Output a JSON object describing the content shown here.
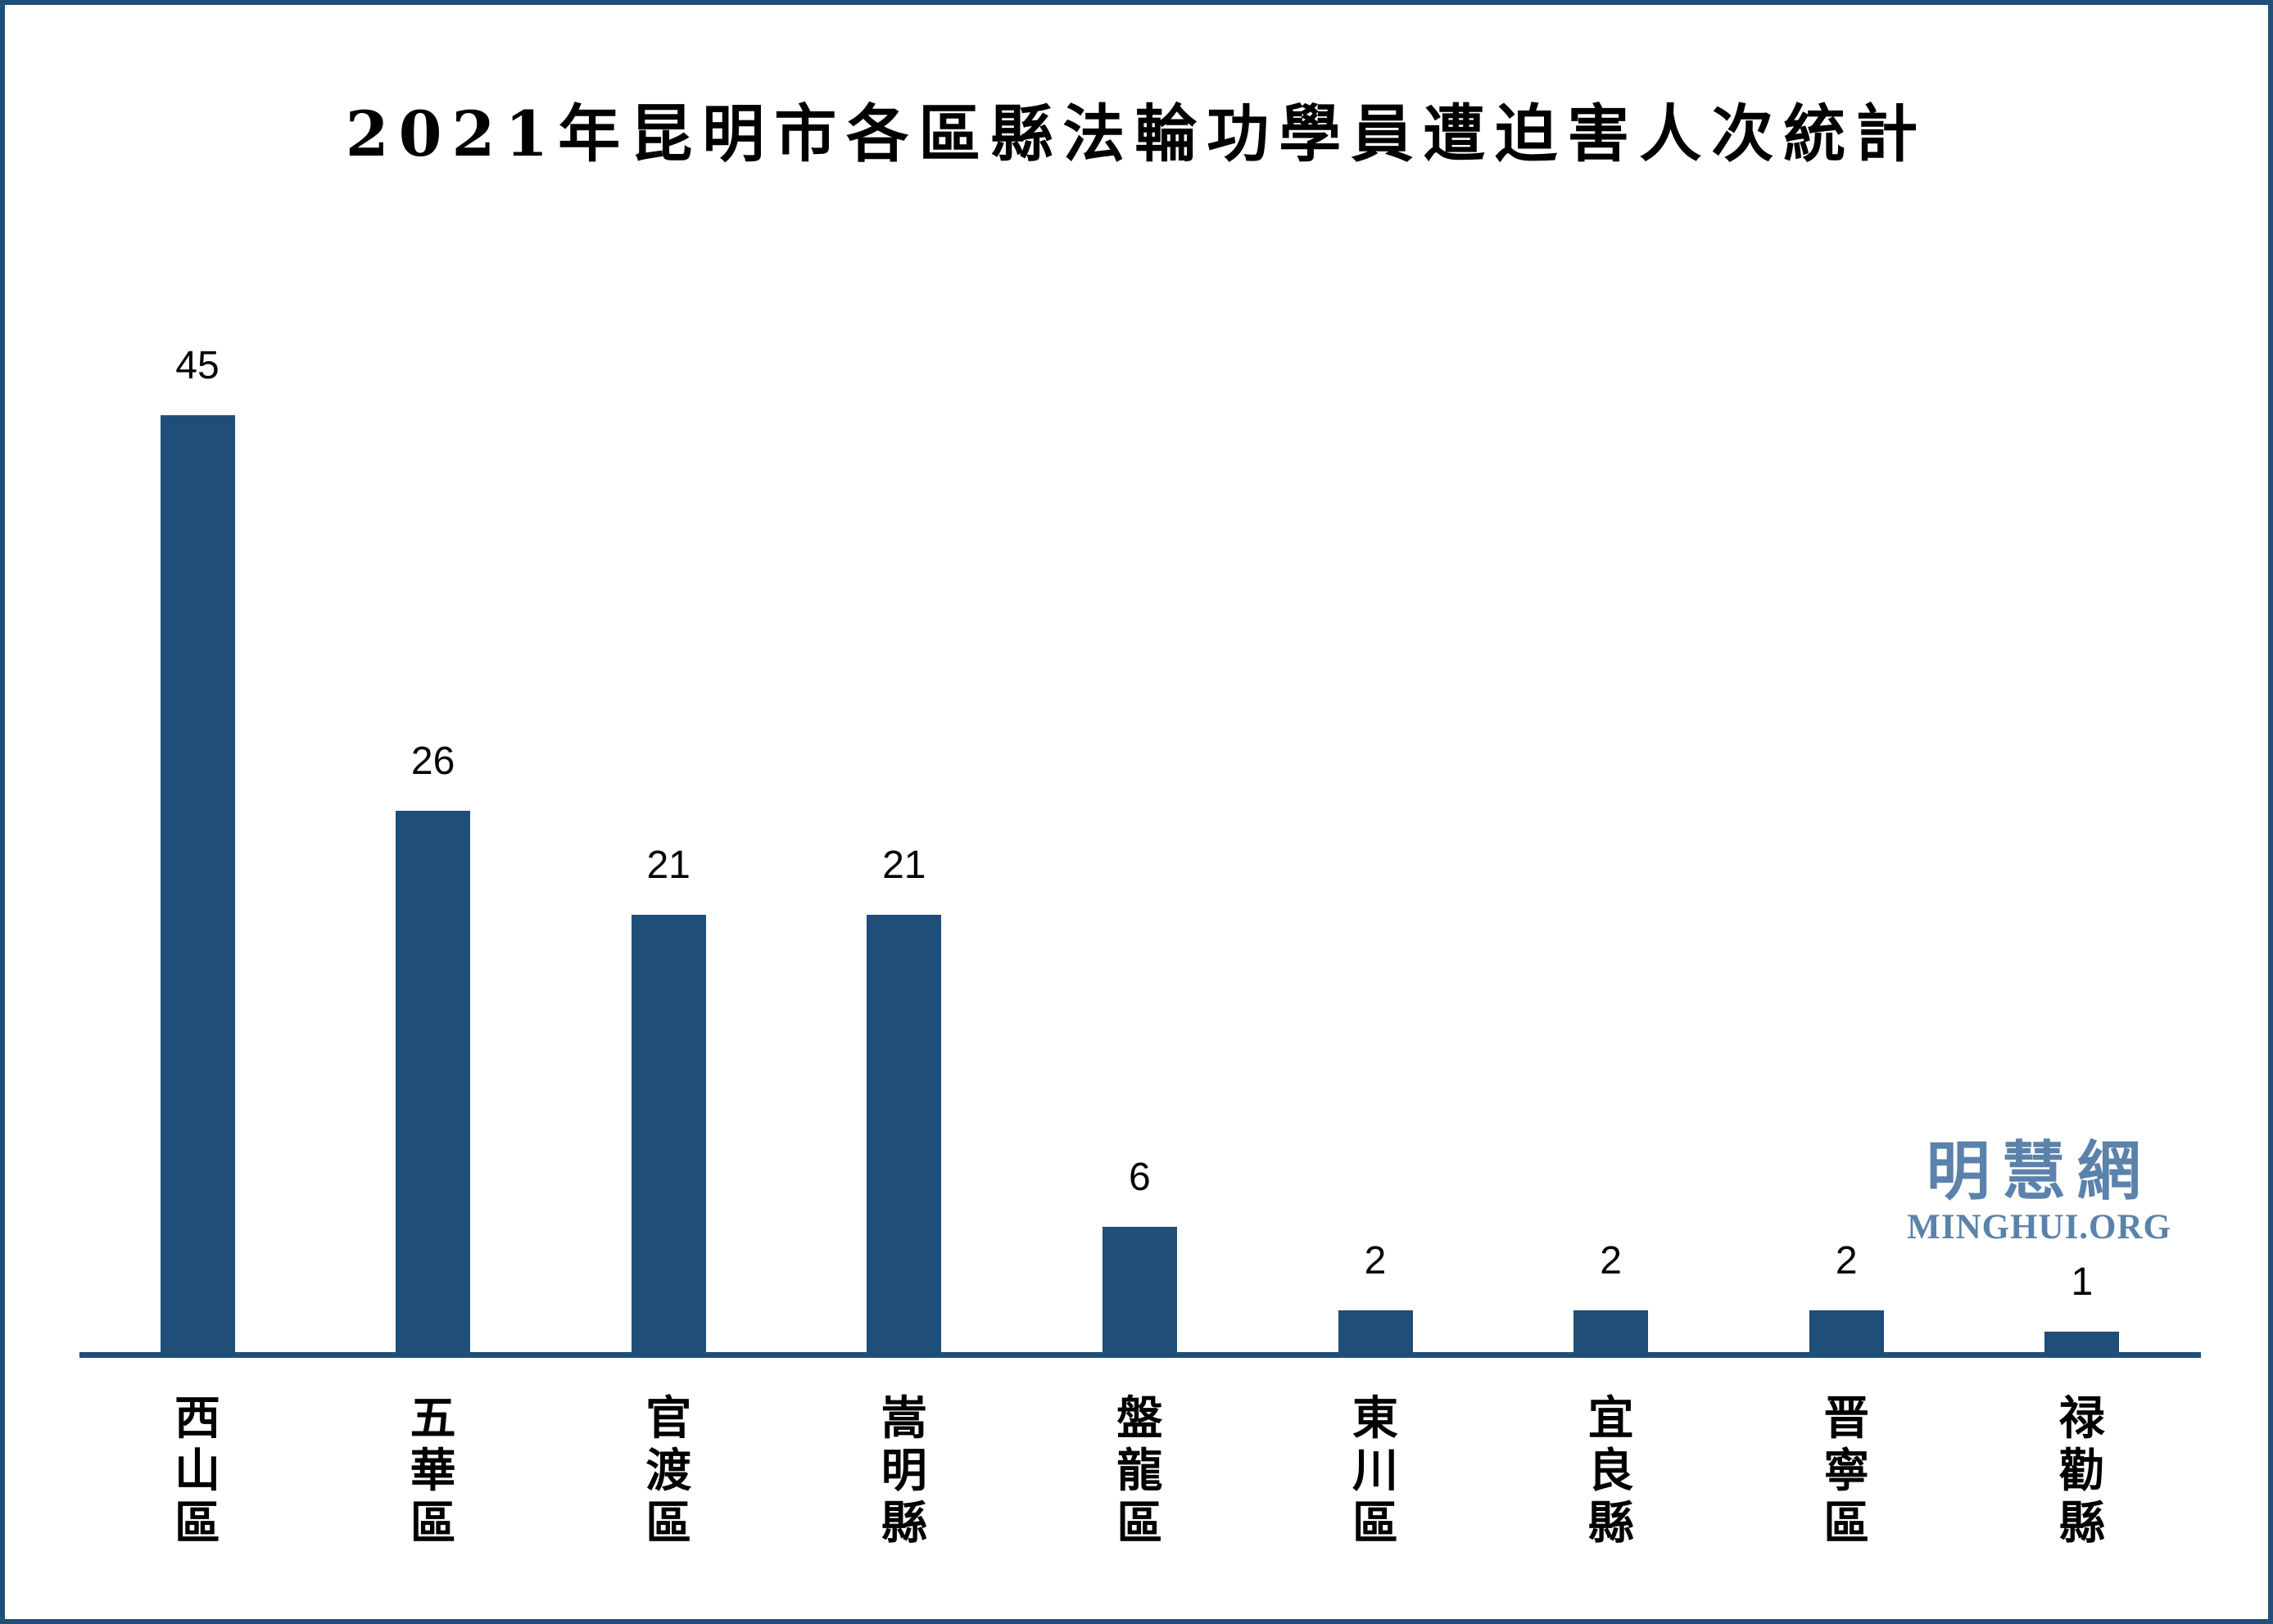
{
  "title": "2021年昆明市各區縣法輪功學員遭迫害人次統計",
  "watermark": {
    "logo_cjk": "明慧網",
    "logo_latin": "MINGHUI.ORG"
  },
  "colors": {
    "bar": "#1f4e79",
    "axis": "#1f4e79",
    "frame_border": "#1f4e79",
    "watermark": "#5b82ab",
    "text": "#000000",
    "background": "#ffffff"
  },
  "chart_data": {
    "type": "bar",
    "title": "2021年昆明市各區縣法輪功學員遭迫害人次統計",
    "categories": [
      "西山區",
      "五華區",
      "官渡區",
      "嵩明縣",
      "盤龍區",
      "東川區",
      "宜良縣",
      "晋寧區",
      "禄勸縣"
    ],
    "values": [
      45,
      26,
      21,
      21,
      6,
      2,
      2,
      2,
      1
    ],
    "value_labels": [
      "45",
      "26",
      "21",
      "21",
      "6",
      "2",
      "2",
      "2",
      "1"
    ],
    "xlabel": "",
    "ylabel": "",
    "ylim": [
      0,
      45
    ],
    "grid": false,
    "legend": "none",
    "value_labels_shown": true,
    "category_label_orientation": "vertical"
  }
}
